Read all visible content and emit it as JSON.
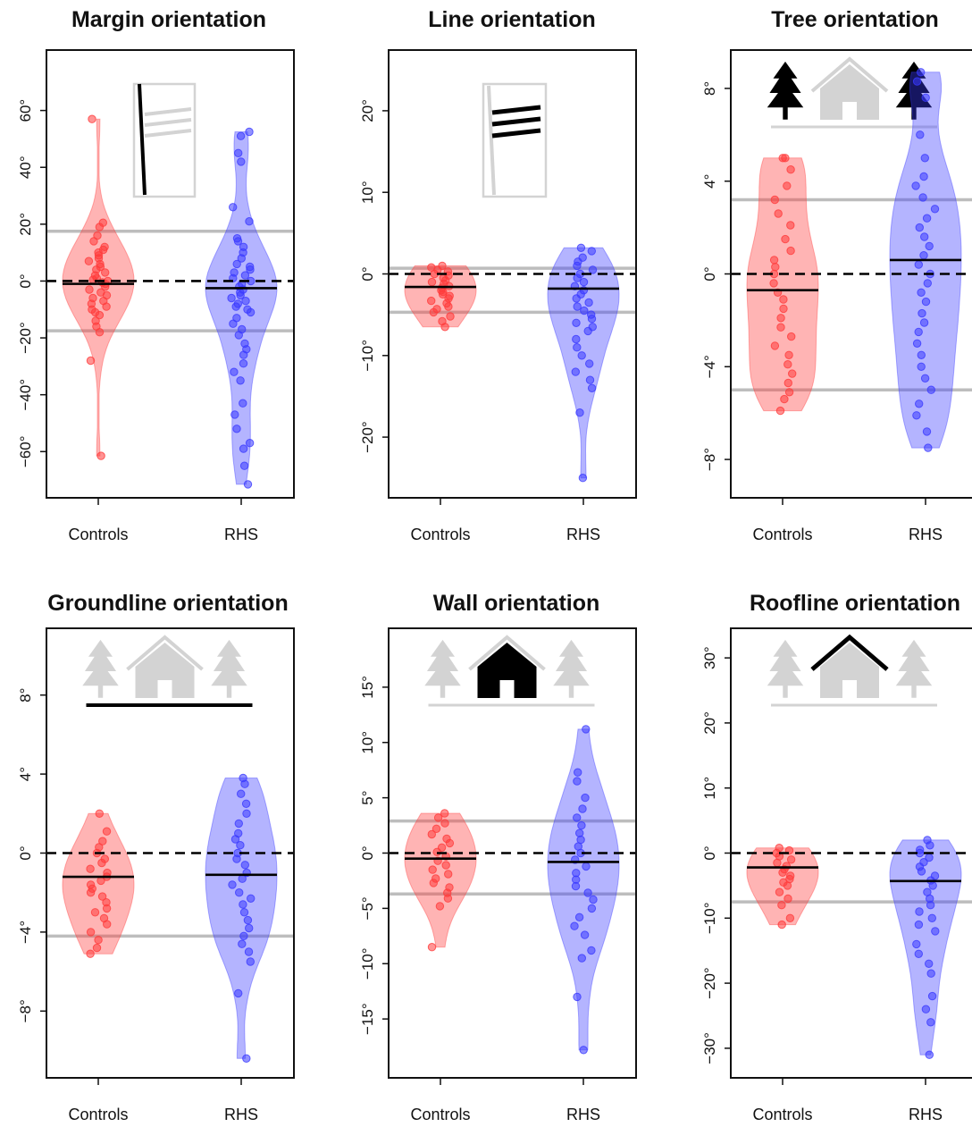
{
  "colors": {
    "controls": "#ff3b3b",
    "rhs": "#3a3aff",
    "cutoff": "#bdbdbd",
    "icon_gray": "#d3d3d3",
    "icon_black": "#000000"
  },
  "chart_data": [
    {
      "type": "violin",
      "title": "Margin orientation",
      "icon": "margin-lines-icon",
      "categories": [
        "Controls",
        "RHS"
      ],
      "yticks": [
        -60,
        -40,
        -20,
        0,
        20,
        40,
        60
      ],
      "tick_labels": [
        "−60°",
        "−40°",
        "−20°",
        "0°",
        "20°",
        "40°",
        "60°"
      ],
      "ylim": [
        -75,
        80
      ],
      "cutoff_lines": [
        17.5,
        -17.5
      ],
      "series": [
        {
          "medians": -1,
          "points": [
            57,
            20.5,
            19,
            16,
            14,
            12,
            11,
            10,
            9,
            8,
            7,
            6,
            5,
            4,
            3,
            2,
            1,
            0.5,
            0,
            -0.5,
            -1,
            -2,
            -3,
            -4,
            -5,
            -6,
            -7,
            -8,
            -9,
            -10,
            -11,
            -12,
            -14,
            -16,
            -18,
            -28,
            -61.5
          ]
        },
        {
          "medians": -2.5,
          "points": [
            52.5,
            51,
            45,
            42,
            26,
            21,
            15,
            14,
            12,
            10,
            8,
            6,
            5,
            4,
            3,
            2,
            1,
            0,
            -1,
            -2,
            -3,
            -4,
            -5,
            -6,
            -7,
            -8,
            -9,
            -10,
            -11,
            -13,
            -15,
            -17,
            -19,
            -22,
            -24,
            -26,
            -29,
            -32,
            -35,
            -43,
            -47,
            -52,
            -57,
            -59,
            -65,
            -71.5
          ]
        }
      ]
    },
    {
      "type": "violin",
      "title": "Line orientation",
      "icon": "line-orientation-icon",
      "categories": [
        "Controls",
        "RHS"
      ],
      "yticks": [
        -20,
        -10,
        0,
        10,
        20
      ],
      "tick_labels": [
        "−20°",
        "−10°",
        "0°",
        "10°",
        "20°"
      ],
      "ylim": [
        -27,
        27
      ],
      "cutoff_lines": [
        0.7,
        -4.7
      ],
      "series": [
        {
          "medians": -1.6,
          "points": [
            1,
            0.8,
            0.5,
            0.3,
            0,
            -0.2,
            -0.5,
            -0.8,
            -1,
            -1.2,
            -1.5,
            -1.7,
            -2,
            -2.2,
            -2.5,
            -2.7,
            -3,
            -3.3,
            -3.6,
            -4,
            -4.3,
            -4.7,
            -5.2,
            -5.8,
            -6.5
          ]
        },
        {
          "medians": -1.8,
          "points": [
            3.2,
            2.8,
            2,
            1.5,
            1,
            0.5,
            0,
            -0.5,
            -1,
            -1.5,
            -2,
            -2.5,
            -3,
            -3.5,
            -4,
            -4.5,
            -5,
            -5.5,
            -6,
            -6.5,
            -7,
            -8,
            -9,
            -10,
            -11,
            -12,
            -13,
            -14,
            -17,
            -25
          ]
        }
      ]
    },
    {
      "type": "violin",
      "title": "Tree orientation",
      "icon": "tree-orientation-icon",
      "categories": [
        "Controls",
        "RHS"
      ],
      "yticks": [
        -8,
        -4,
        0,
        4,
        8
      ],
      "tick_labels": [
        "−8°",
        "−4°",
        "0°",
        "4°",
        "8°"
      ],
      "ylim": [
        -9.5,
        9.5
      ],
      "cutoff_lines": [
        3.2,
        -5
      ],
      "series": [
        {
          "medians": -0.7,
          "points": [
            5,
            5,
            4.5,
            3.8,
            3.2,
            2.6,
            2.1,
            1.5,
            1,
            0.6,
            0.3,
            0,
            -0.4,
            -0.8,
            -1.1,
            -1.5,
            -1.9,
            -2.3,
            -2.7,
            -3.1,
            -3.5,
            -3.9,
            -4.3,
            -4.7,
            -5.1,
            -5.4,
            -5.9
          ]
        },
        {
          "medians": 0.6,
          "points": [
            8.7,
            8.3,
            7.6,
            6,
            5,
            4.2,
            3.8,
            3.3,
            2.8,
            2.4,
            2,
            1.6,
            1.2,
            0.8,
            0.4,
            0,
            -0.4,
            -0.8,
            -1.2,
            -1.7,
            -2.1,
            -2.5,
            -3,
            -3.5,
            -4,
            -4.5,
            -5,
            -5.6,
            -6.1,
            -6.8,
            -7.5
          ]
        }
      ]
    },
    {
      "type": "violin",
      "title": "Groundline orientation",
      "icon": "groundline-orientation-icon",
      "categories": [
        "Controls",
        "RHS"
      ],
      "yticks": [
        -8,
        -4,
        0,
        4,
        8
      ],
      "tick_labels": [
        "−8°",
        "−4°",
        "0°",
        "4°",
        "8°"
      ],
      "ylim": [
        -11.2,
        11.2
      ],
      "cutoff_lines": [
        -4.2
      ],
      "series": [
        {
          "medians": -1.2,
          "points": [
            2,
            1.1,
            0.6,
            0.3,
            0,
            -0.3,
            -0.5,
            -0.8,
            -1,
            -1.2,
            -1.4,
            -1.6,
            -1.8,
            -2,
            -2.2,
            -2.5,
            -2.8,
            -3,
            -3.3,
            -3.6,
            -4,
            -4.4,
            -4.8,
            -5.1
          ]
        },
        {
          "medians": -1.1,
          "points": [
            3.8,
            3.5,
            3,
            2.5,
            2,
            1.5,
            1,
            0.7,
            0.4,
            0,
            -0.3,
            -0.6,
            -1,
            -1.3,
            -1.6,
            -2,
            -2.3,
            -2.6,
            -3,
            -3.4,
            -3.8,
            -4.2,
            -4.6,
            -5,
            -5.5,
            -7.1,
            -10.4
          ]
        }
      ]
    },
    {
      "type": "violin",
      "title": "Wall orientation",
      "icon": "wall-orientation-icon",
      "categories": [
        "Controls",
        "RHS"
      ],
      "yticks": [
        -15,
        -10,
        -5,
        0,
        5,
        10,
        15
      ],
      "tick_labels": [
        "−15°",
        "−10°",
        "−5°",
        "0°",
        "5°",
        "10°",
        "15°"
      ],
      "ylim": [
        -20,
        20
      ],
      "cutoff_lines": [
        2.9,
        -3.7
      ],
      "series": [
        {
          "medians": -0.5,
          "points": [
            3.6,
            3.2,
            2.7,
            2.2,
            1.7,
            1.3,
            0.9,
            0.5,
            0.1,
            -0.3,
            -0.7,
            -1.1,
            -1.5,
            -1.9,
            -2.3,
            -2.7,
            -3.1,
            -3.6,
            -4.1,
            -4.8,
            -8.5
          ]
        },
        {
          "medians": -0.8,
          "points": [
            11.2,
            7.3,
            6.5,
            5,
            4,
            3.2,
            2.5,
            1.8,
            1.2,
            0.6,
            0,
            -0.6,
            -1.2,
            -1.8,
            -2.4,
            -3,
            -3.6,
            -4.2,
            -5,
            -5.8,
            -6.6,
            -7.4,
            -8.8,
            -9.5,
            -13,
            -17.8
          ]
        }
      ]
    },
    {
      "type": "violin",
      "title": "Roofline orientation",
      "icon": "roofline-orientation-icon",
      "categories": [
        "Controls",
        "RHS"
      ],
      "yticks": [
        -30,
        -20,
        -10,
        0,
        10,
        20,
        30
      ],
      "tick_labels": [
        "−30°",
        "−20°",
        "−10°",
        "0°",
        "10°",
        "20°",
        "30°"
      ],
      "ylim": [
        -34,
        34
      ],
      "cutoff_lines": [
        -7.5
      ],
      "series": [
        {
          "medians": -2.2,
          "points": [
            0.8,
            0.4,
            0,
            -0.5,
            -1,
            -1.5,
            -2,
            -2.5,
            -3,
            -3.5,
            -4,
            -4.5,
            -5,
            -6,
            -7,
            -8,
            -10,
            -11
          ]
        },
        {
          "medians": -4.3,
          "points": [
            2,
            1.2,
            0.5,
            0,
            -0.7,
            -1.4,
            -2.1,
            -2.8,
            -3.5,
            -4.2,
            -5,
            -6,
            -7,
            -8,
            -9,
            -10,
            -11,
            -12,
            -14,
            -15.5,
            -17,
            -18.5,
            -22,
            -24,
            -26,
            -31
          ]
        }
      ]
    }
  ]
}
